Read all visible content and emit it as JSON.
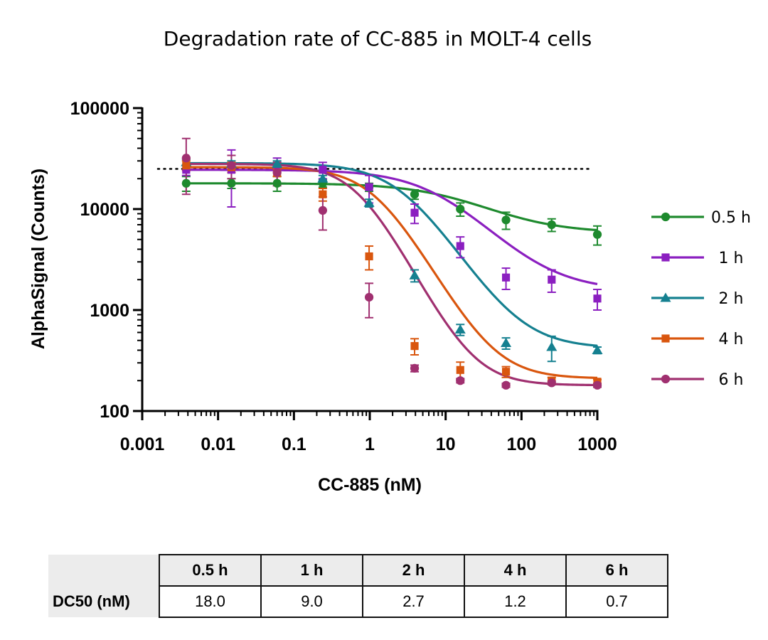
{
  "chart_data": {
    "type": "scatter",
    "title": "Degradation rate of CC-885 in MOLT-4 cells",
    "xlabel": "CC-885 (nM)",
    "ylabel": "AlphaSignal (Counts)",
    "xscale": "log",
    "yscale": "log",
    "xlim": [
      0.001,
      1000
    ],
    "ylim": [
      100,
      100000
    ],
    "x_ticks": [
      0.001,
      0.01,
      0.1,
      1,
      10,
      100,
      1000
    ],
    "x_tick_labels": [
      "0.001",
      "0.01",
      "0.1",
      "1",
      "10",
      "100",
      "1000"
    ],
    "y_ticks": [
      100,
      1000,
      10000,
      100000
    ],
    "y_tick_labels": [
      "100",
      "1000",
      "10000",
      "100000"
    ],
    "reference_line_y": 25000,
    "x": [
      0.0038,
      0.015,
      0.06,
      0.24,
      0.98,
      3.9,
      15.6,
      62.5,
      250,
      1000
    ],
    "legend_position": "right",
    "series": [
      {
        "name": "0.5 h",
        "color": "#1e8a2e",
        "marker": "circle",
        "values": [
          18000,
          18000,
          18000,
          18000,
          16500,
          14000,
          10000,
          7800,
          7000,
          5600
        ],
        "errors": [
          3000,
          2000,
          3000,
          1500,
          1500,
          1500,
          1500,
          1500,
          1000,
          1200
        ],
        "fit": {
          "top": 18000,
          "bottom": 5800,
          "ec50": 18.0,
          "hill": 0.85
        }
      },
      {
        "name": "1 h",
        "color": "#8b1fc0",
        "marker": "square",
        "values": [
          24500,
          24500,
          25000,
          24500,
          16500,
          9200,
          4300,
          2100,
          2000,
          1300
        ],
        "errors": [
          3000,
          14000,
          7000,
          4500,
          5000,
          2000,
          1000,
          500,
          500,
          300
        ],
        "fit": {
          "top": 24500,
          "bottom": 1550,
          "ec50": 9.0,
          "hill": 0.95
        }
      },
      {
        "name": "2 h",
        "color": "#158090",
        "marker": "triangle",
        "values": [
          29000,
          28000,
          28000,
          20000,
          11500,
          2200,
          640,
          470,
          430,
          400
        ],
        "errors": [
          2000,
          2000,
          2000,
          1500,
          1000,
          300,
          80,
          60,
          120,
          30
        ],
        "fit": {
          "top": 28500,
          "bottom": 420,
          "ec50": 2.7,
          "hill": 1.2
        }
      },
      {
        "name": "4 h",
        "color": "#d9560e",
        "marker": "square",
        "values": [
          27000,
          26000,
          23000,
          14000,
          3400,
          440,
          255,
          245,
          200,
          195
        ],
        "errors": [
          3000,
          3000,
          2000,
          2000,
          900,
          80,
          50,
          30,
          15,
          10
        ],
        "fit": {
          "top": 26000,
          "bottom": 210,
          "ec50": 1.2,
          "hill": 1.35
        }
      },
      {
        "name": "6 h",
        "color": "#a03070",
        "marker": "circle",
        "values": [
          32000,
          27000,
          23000,
          9700,
          1340,
          265,
          200,
          180,
          190,
          180
        ],
        "errors": [
          18000,
          7000,
          6000,
          3500,
          500,
          20,
          10,
          8,
          8,
          8
        ],
        "fit": {
          "top": 28000,
          "bottom": 180,
          "ec50": 0.7,
          "hill": 1.45
        }
      }
    ]
  },
  "table": {
    "headers": [
      "0.5 h",
      "1 h",
      "2 h",
      "4 h",
      "6 h"
    ],
    "row_label": "DC50 (nM)",
    "values": [
      "18.0",
      "9.0",
      "2.7",
      "1.2",
      "0.7"
    ]
  }
}
